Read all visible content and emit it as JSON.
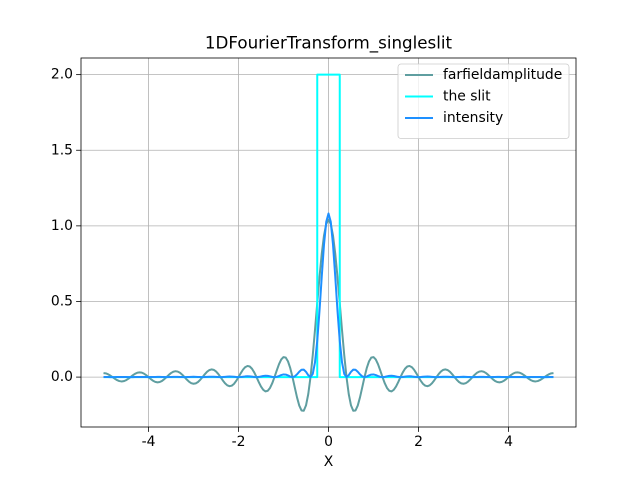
{
  "chart_data": {
    "type": "line",
    "title": "1DFourierTransform_singleslit",
    "xlabel": "X",
    "xlim": [
      -5.5,
      5.5
    ],
    "ylim": [
      -0.33,
      2.11
    ],
    "xticks": [
      -4,
      -2,
      0,
      2,
      4
    ],
    "yticks": [
      {
        "value": 0,
        "label": "0.0"
      },
      {
        "value": 0.5,
        "label": "0.5"
      },
      {
        "value": 1,
        "label": "1.0"
      },
      {
        "value": 1.5,
        "label": "1.5"
      },
      {
        "value": 2,
        "label": "2.0"
      }
    ],
    "grid": true,
    "legend": "upper right",
    "x": [
      -5,
      -4.95,
      -4.9,
      -4.85,
      -4.8,
      -4.75,
      -4.7,
      -4.65,
      -4.6,
      -4.55,
      -4.5,
      -4.45,
      -4.4,
      -4.35,
      -4.3,
      -4.25,
      -4.2,
      -4.15,
      -4.1,
      -4.05,
      -4,
      -3.95,
      -3.9,
      -3.85,
      -3.8,
      -3.75,
      -3.7,
      -3.65,
      -3.6,
      -3.55,
      -3.5,
      -3.45,
      -3.4,
      -3.35,
      -3.3,
      -3.25,
      -3.2,
      -3.15,
      -3.1,
      -3.05,
      -3,
      -2.95,
      -2.9,
      -2.85,
      -2.8,
      -2.75,
      -2.7,
      -2.65,
      -2.6,
      -2.55,
      -2.5,
      -2.45,
      -2.4,
      -2.35,
      -2.3,
      -2.25,
      -2.2,
      -2.15,
      -2.1,
      -2.05,
      -2,
      -1.95,
      -1.9,
      -1.85,
      -1.8,
      -1.75,
      -1.7,
      -1.65,
      -1.6,
      -1.55,
      -1.5,
      -1.45,
      -1.4,
      -1.35,
      -1.3,
      -1.25,
      -1.2,
      -1.15,
      -1.1,
      -1.05,
      -1,
      -0.95,
      -0.9,
      -0.85,
      -0.8,
      -0.75,
      -0.7,
      -0.65,
      -0.6,
      -0.55,
      -0.5,
      -0.45,
      -0.4,
      -0.35,
      -0.3,
      -0.25,
      -0.2,
      -0.15,
      -0.1,
      -0.05,
      0,
      0.05,
      0.1,
      0.15,
      0.2,
      0.25,
      0.3,
      0.35,
      0.4,
      0.45,
      0.5,
      0.55,
      0.6,
      0.65,
      0.7,
      0.75,
      0.8,
      0.85,
      0.9,
      0.95,
      1,
      1.05,
      1.1,
      1.15,
      1.2,
      1.25,
      1.3,
      1.35,
      1.4,
      1.45,
      1.5,
      1.55,
      1.6,
      1.65,
      1.7,
      1.75,
      1.8,
      1.85,
      1.9,
      1.95,
      2,
      2.05,
      2.1,
      2.15,
      2.2,
      2.25,
      2.3,
      2.35,
      2.4,
      2.45,
      2.5,
      2.55,
      2.6,
      2.65,
      2.7,
      2.75,
      2.8,
      2.85,
      2.9,
      2.95,
      3,
      3.05,
      3.1,
      3.15,
      3.2,
      3.25,
      3.3,
      3.35,
      3.4,
      3.45,
      3.5,
      3.55,
      3.6,
      3.65,
      3.7,
      3.75,
      3.8,
      3.85,
      3.9,
      3.95,
      4,
      4.05,
      4.1,
      4.15,
      4.2,
      4.25,
      4.3,
      4.35,
      4.4,
      4.45,
      4.5,
      4.55,
      4.6,
      4.65,
      4.7,
      4.75,
      4.8,
      4.85,
      4.9,
      4.95,
      5
    ],
    "series": [
      {
        "name": "farfieldamplitude",
        "color": "#5f9ea0",
        "values": [
          0.0265,
          0.0247,
          0.0191,
          0.0104,
          0,
          -0.0107,
          -0.0199,
          -0.0263,
          -0.0288,
          -0.0269,
          -0.0208,
          -0.0114,
          0,
          0.0116,
          0.0218,
          0.0288,
          0.0315,
          0.0295,
          0.0228,
          0.0125,
          0,
          -0.0128,
          -0.024,
          -0.0318,
          -0.0348,
          -0.0326,
          -0.0253,
          -0.0139,
          0,
          0.0143,
          0.0267,
          0.0355,
          0.0389,
          0.0365,
          0.0284,
          0.0156,
          0,
          -0.0161,
          -0.0302,
          -0.0401,
          -0.0441,
          -0.0415,
          -0.0323,
          -0.0178,
          0,
          0.0184,
          0.0347,
          0.0462,
          0.0509,
          0.048,
          0.0374,
          0.0207,
          0,
          -0.0216,
          -0.0407,
          -0.0544,
          -0.0602,
          -0.0569,
          -0.0446,
          -0.0247,
          0,
          0.026,
          0.0493,
          0.0661,
          0.0736,
          0.0699,
          0.0551,
          0.0307,
          0,
          -0.0327,
          -0.0624,
          -0.0844,
          -0.0946,
          -0.0906,
          -0.072,
          -0.0405,
          0,
          0.0441,
          0.0851,
          0.1165,
          0.1324,
          0.1288,
          0.104,
          0.0596,
          0,
          -0.0676,
          -0.1337,
          -0.1882,
          -0.2207,
          -0.2224,
          -0.1872,
          -0.1126,
          0,
          0.1448,
          0.3121,
          0.4893,
          0.662,
          0.8155,
          0.9362,
          1.0134,
          1.04,
          1.0134,
          0.9362,
          0.8155,
          0.662,
          0.4893,
          0.3121,
          0.1448,
          0,
          -0.1126,
          -0.1872,
          -0.2224,
          -0.2207,
          -0.1882,
          -0.1337,
          -0.0676,
          0,
          0.0596,
          0.104,
          0.1288,
          0.1324,
          0.1165,
          0.0851,
          0.0441,
          0,
          -0.0405,
          -0.072,
          -0.0906,
          -0.0946,
          -0.0844,
          -0.0624,
          -0.0327,
          0,
          0.0307,
          0.0551,
          0.0699,
          0.0736,
          0.0661,
          0.0493,
          0.026,
          0,
          -0.0247,
          -0.0446,
          -0.0569,
          -0.0602,
          -0.0544,
          -0.0407,
          -0.0216,
          0,
          0.0207,
          0.0374,
          0.048,
          0.0509,
          0.0462,
          0.0347,
          0.0184,
          0,
          -0.0178,
          -0.0323,
          -0.0415,
          -0.0441,
          -0.0401,
          -0.0302,
          -0.0161,
          0,
          0.0156,
          0.0284,
          0.0365,
          0.0389,
          0.0355,
          0.0267,
          0.0143,
          0,
          -0.0139,
          -0.0253,
          -0.0326,
          -0.0348,
          -0.0318,
          -0.024,
          -0.0128,
          0,
          0.0125,
          0.0228,
          0.0295,
          0.0315,
          0.0288,
          0.0218,
          0.0116,
          0,
          -0.0114,
          -0.0208,
          -0.0269,
          -0.0288,
          -0.0263,
          -0.0199,
          -0.0107,
          0,
          0.0104,
          0.0191,
          0.0247,
          0.0265
        ]
      },
      {
        "name": "the slit",
        "color": "#00ffff",
        "x": [
          -5,
          -0.25,
          -0.25,
          0.25,
          0.25,
          5
        ],
        "values": [
          0,
          0,
          2,
          2,
          0,
          0
        ]
      },
      {
        "name": "intensity",
        "color": "#1e90ff",
        "values": [
          0.0007,
          0.0006,
          0.0004,
          0.0001,
          0,
          0.0001,
          0.0004,
          0.0007,
          0.0008,
          0.0007,
          0.0004,
          0.0001,
          0,
          0.0001,
          0.0005,
          0.0008,
          0.001,
          0.0009,
          0.0005,
          0.0002,
          0,
          0.0002,
          0.0006,
          0.001,
          0.0012,
          0.0011,
          0.0006,
          0.0002,
          0,
          0.0002,
          0.0007,
          0.0013,
          0.0015,
          0.0013,
          0.0008,
          0.0002,
          0,
          0.0003,
          0.0009,
          0.0016,
          0.0019,
          0.0017,
          0.001,
          0.0003,
          0,
          0.0003,
          0.0012,
          0.0021,
          0.0026,
          0.0023,
          0.0014,
          0.0004,
          0,
          0.0005,
          0.0017,
          0.003,
          0.0036,
          0.0032,
          0.002,
          0.0006,
          0,
          0.0007,
          0.0024,
          0.0044,
          0.0054,
          0.0049,
          0.003,
          0.0009,
          0,
          0.0011,
          0.0039,
          0.0071,
          0.0089,
          0.0082,
          0.0052,
          0.0016,
          0,
          0.0019,
          0.0072,
          0.0136,
          0.0175,
          0.0166,
          0.0108,
          0.0036,
          0,
          0.0046,
          0.0179,
          0.0354,
          0.0487,
          0.0495,
          0.035,
          0.0127,
          0,
          0.021,
          0.0974,
          0.2394,
          0.4382,
          0.665,
          0.8765,
          1.027,
          1.0816,
          1.027,
          0.8765,
          0.665,
          0.4382,
          0.2394,
          0.0974,
          0.021,
          0,
          0.0127,
          0.035,
          0.0495,
          0.0487,
          0.0354,
          0.0179,
          0.0046,
          0,
          0.0036,
          0.0108,
          0.0166,
          0.0175,
          0.0136,
          0.0072,
          0.0019,
          0,
          0.0016,
          0.0052,
          0.0082,
          0.0089,
          0.0071,
          0.0039,
          0.0011,
          0,
          0.0009,
          0.003,
          0.0049,
          0.0054,
          0.0044,
          0.0024,
          0.0007,
          0,
          0.0006,
          0.002,
          0.0032,
          0.0036,
          0.003,
          0.0017,
          0.0005,
          0,
          0.0004,
          0.0014,
          0.0023,
          0.0026,
          0.0021,
          0.0012,
          0.0003,
          0,
          0.0003,
          0.001,
          0.0017,
          0.0019,
          0.0016,
          0.0009,
          0.0003,
          0,
          0.0002,
          0.0008,
          0.0013,
          0.0015,
          0.0013,
          0.0007,
          0.0002,
          0,
          0.0002,
          0.0006,
          0.0011,
          0.0012,
          0.001,
          0.0006,
          0.0002,
          0,
          0.0002,
          0.0005,
          0.0009,
          0.001,
          0.0008,
          0.0005,
          0.0001,
          0,
          0.0001,
          0.0004,
          0.0007,
          0.0008,
          0.0007,
          0.0004,
          0.0001,
          0,
          0.0001,
          0.0004,
          0.0006,
          0.0007
        ]
      }
    ]
  }
}
